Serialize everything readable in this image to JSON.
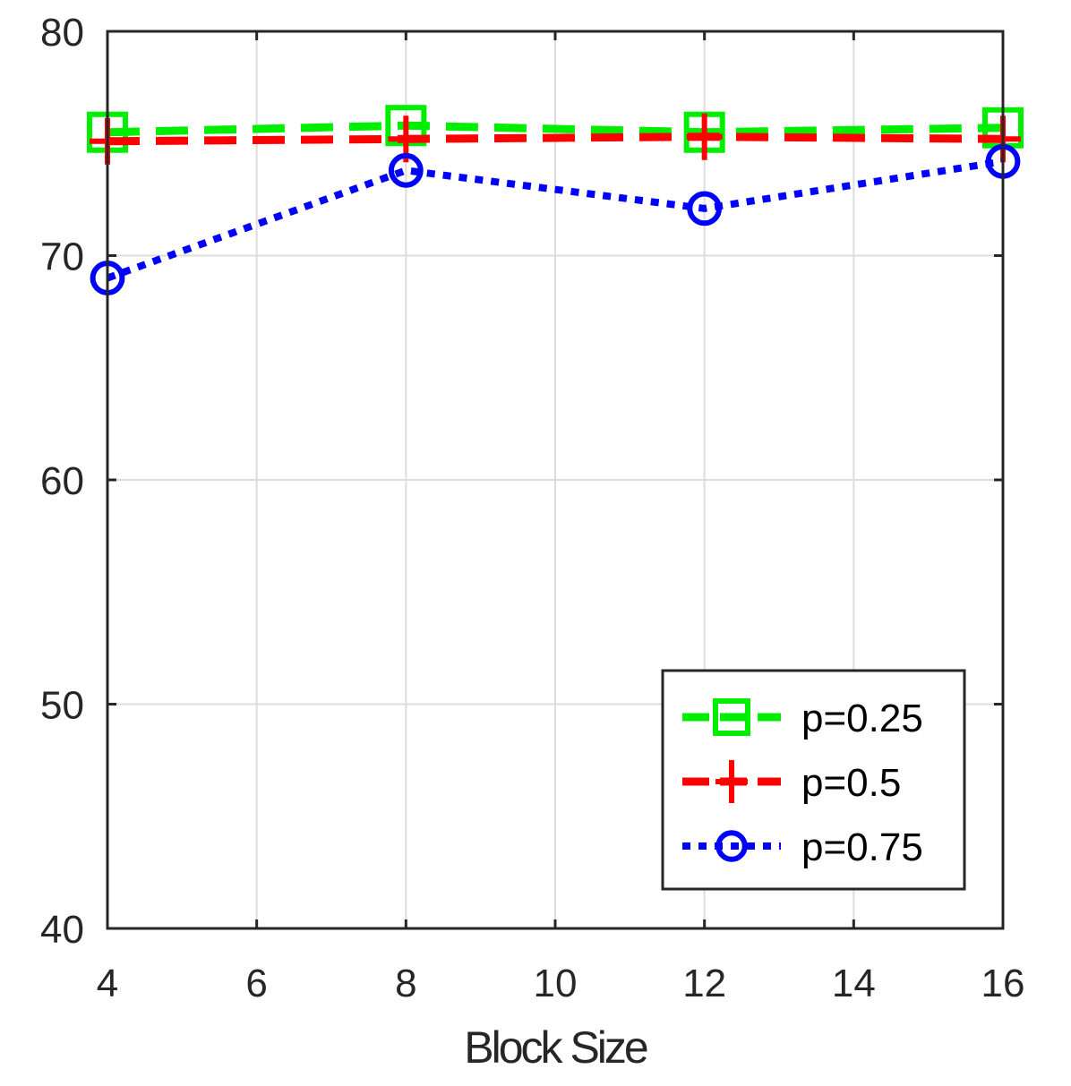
{
  "chart_data": {
    "type": "line",
    "title": "",
    "xlabel": "Block Size",
    "ylabel": "",
    "x": [
      4,
      8,
      12,
      16
    ],
    "xlim": [
      4,
      16
    ],
    "ylim": [
      40,
      80
    ],
    "xticks": [
      4,
      6,
      8,
      10,
      12,
      14,
      16
    ],
    "yticks": [
      40,
      50,
      60,
      70,
      80
    ],
    "grid": true,
    "legend_position": "bottom-right",
    "series": [
      {
        "name": "p=0.25",
        "values": [
          75.5,
          75.8,
          75.5,
          75.7
        ],
        "color": "#00ee00",
        "marker": "square",
        "linestyle": "dashed"
      },
      {
        "name": "p=0.5",
        "values": [
          75.1,
          75.2,
          75.3,
          75.2
        ],
        "color": "#ff0000",
        "marker": "plus",
        "linestyle": "dashed"
      },
      {
        "name": "p=0.75",
        "values": [
          69.0,
          73.8,
          72.1,
          74.2
        ],
        "color": "#0000ff",
        "marker": "circle",
        "linestyle": "dotted"
      }
    ]
  }
}
